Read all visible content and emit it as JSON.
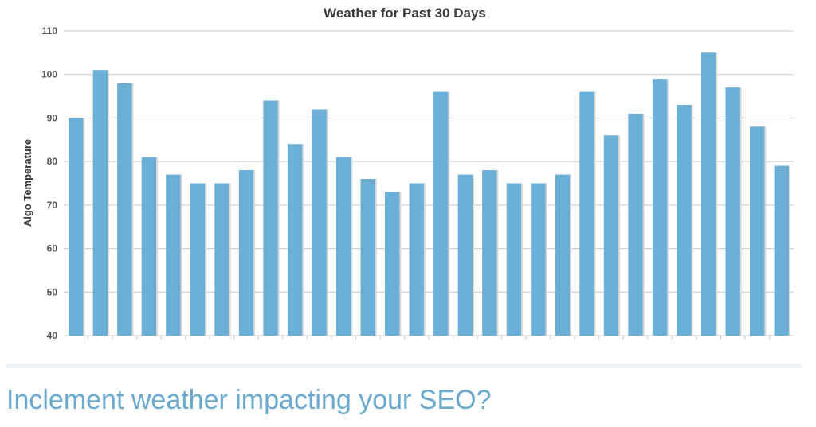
{
  "headline": "Inclement weather impacting your SEO?",
  "colors": {
    "bar": "#6baed6",
    "headline": "#6aa9cf"
  },
  "chart_data": {
    "type": "bar",
    "title": "Weather for Past 30 Days",
    "xlabel": "",
    "ylabel": "Algo Temperature",
    "ylim": [
      40,
      110
    ],
    "yticks": [
      40,
      50,
      60,
      70,
      80,
      90,
      100,
      110
    ],
    "grid": true,
    "legend": "none",
    "values": [
      90,
      101,
      98,
      81,
      77,
      75,
      75,
      78,
      94,
      84,
      92,
      81,
      76,
      73,
      75,
      96,
      77,
      78,
      75,
      75,
      77,
      96,
      86,
      91,
      99,
      93,
      105,
      97,
      88,
      79
    ]
  }
}
